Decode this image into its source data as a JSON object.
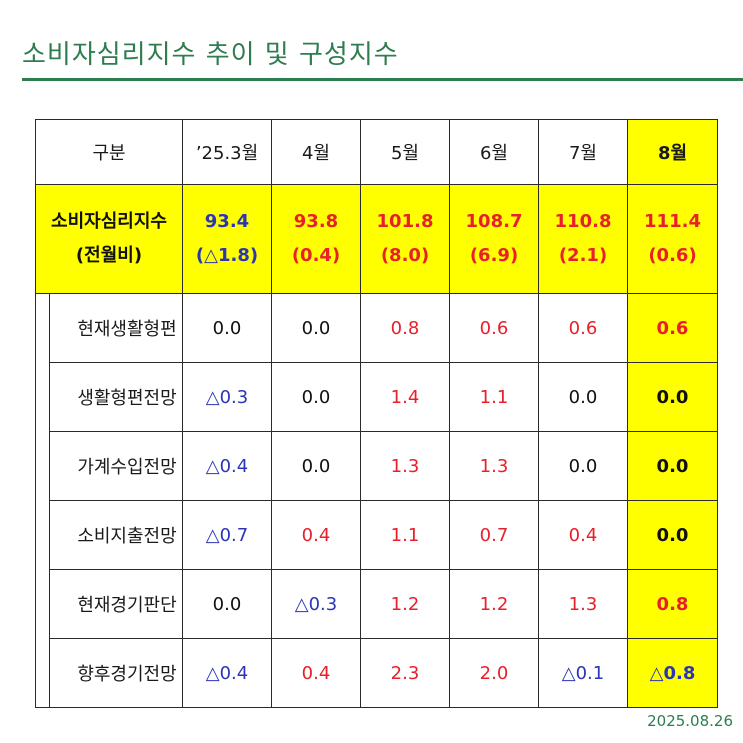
{
  "title": "소비자심리지수 추이 및 구성지수",
  "date": "2025.08.26",
  "header": [
    "구분",
    "’25.3월",
    "4월",
    "5월",
    "6월",
    "7월",
    "8월"
  ],
  "main_row": {
    "label_line1": "소비자심리지수",
    "label_line2": "(전월비)",
    "cells": [
      {
        "value": "93.4",
        "change": "(△1.8)"
      },
      {
        "value": "93.8",
        "change": "(0.4)"
      },
      {
        "value": "101.8",
        "change": "(8.0)"
      },
      {
        "value": "108.7",
        "change": "(6.9)"
      },
      {
        "value": "110.8",
        "change": "(2.1)"
      },
      {
        "value": "111.4",
        "change": "(0.6)"
      }
    ]
  },
  "rows": [
    {
      "label": "현재생활형편",
      "cells": [
        "0.0",
        "0.0",
        "0.8",
        "0.6",
        "0.6",
        "0.6"
      ]
    },
    {
      "label": "생활형편전망",
      "cells": [
        "△0.3",
        "0.0",
        "1.4",
        "1.1",
        "0.0",
        "0.0"
      ]
    },
    {
      "label": "가계수입전망",
      "cells": [
        "△0.4",
        "0.0",
        "1.3",
        "1.3",
        "0.0",
        "0.0"
      ]
    },
    {
      "label": "소비지출전망",
      "cells": [
        "△0.7",
        "0.4",
        "1.1",
        "0.7",
        "0.4",
        "0.0"
      ]
    },
    {
      "label": "현재경기판단",
      "cells": [
        "0.0",
        "△0.3",
        "1.2",
        "1.2",
        "1.3",
        "0.8"
      ]
    },
    {
      "label": "향후경기전망",
      "cells": [
        "△0.4",
        "0.4",
        "2.3",
        "2.0",
        "△0.1",
        "△0.8"
      ]
    }
  ],
  "colors": {
    "title": "#2e7d4f",
    "highlight": "#ffff00",
    "positive": "#e8202a",
    "negative": "#2a35b8"
  }
}
